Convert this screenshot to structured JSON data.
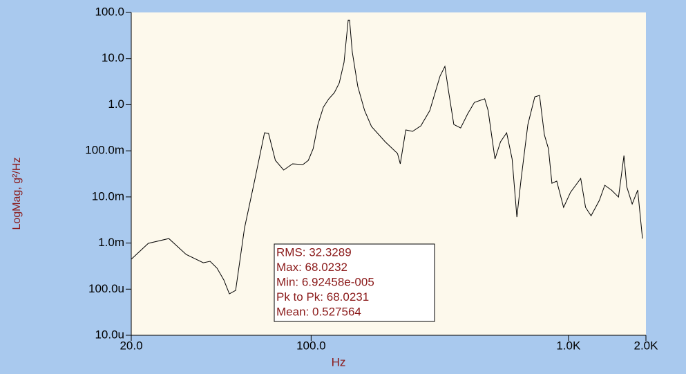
{
  "chart_data": {
    "type": "line",
    "xlabel": "Hz",
    "ylabel": "LogMag, g²/Hz",
    "xscale": "log",
    "yscale": "log",
    "xlim": [
      20,
      2000
    ],
    "ylim": [
      1e-05,
      100
    ],
    "xticks": [
      {
        "value": 20,
        "label": "20.0"
      },
      {
        "value": 100,
        "label": "100.0"
      },
      {
        "value": 1000,
        "label": "1.0K"
      },
      {
        "value": 2000,
        "label": "2.0K"
      }
    ],
    "yticks": [
      {
        "value": 1e-05,
        "label": "10.0u"
      },
      {
        "value": 0.0001,
        "label": "100.0u"
      },
      {
        "value": 0.001,
        "label": "1.0m"
      },
      {
        "value": 0.01,
        "label": "10.0m"
      },
      {
        "value": 0.1,
        "label": "100.0m"
      },
      {
        "value": 1,
        "label": "1.0"
      },
      {
        "value": 10,
        "label": "10.0"
      },
      {
        "value": 100,
        "label": "100.0"
      }
    ],
    "annotations": [
      "RMS: 32.3289",
      "Max: 68.0232",
      "Min: 6.92458e-005",
      "Pk to Pk: 68.0231",
      "Mean: 0.527564"
    ],
    "series": [
      {
        "color": "#000000",
        "x": [
          20,
          23.3,
          28.0,
          32.7,
          38.1,
          40.5,
          43.1,
          45.8,
          48.1,
          50.9,
          55.1,
          60.4,
          65.9,
          68.3,
          72.6,
          78.2,
          84.7,
          92.9,
          97.5,
          101.8,
          106.3,
          111.6,
          117.2,
          123.1,
          128.6,
          134.2,
          139.3,
          141.0,
          144.5,
          151.8,
          161.4,
          171.6,
          194.0,
          216.6,
          222.0,
          233.3,
          248.0,
          267.0,
          289.1,
          317.0,
          331.0,
          341.3,
          358.5,
          381.1,
          405.3,
          430.9,
          472.5,
          487.3,
          518.0,
          544.3,
          575.3,
          603.9,
          630.4,
          654.1,
          695.4,
          739.6,
          772.1,
          806.1,
          836.3,
          862.5,
          900.4,
          957.3,
          1018,
          1116,
          1165,
          1224,
          1318,
          1384,
          1471,
          1565,
          1643,
          1684,
          1769,
          1858,
          1939
        ],
        "values": [
          0.000445,
          0.000984,
          0.00125,
          0.000566,
          0.000374,
          0.000401,
          0.000284,
          0.000158,
          7.9e-05,
          9.4e-05,
          0.0021,
          0.0235,
          0.246,
          0.238,
          0.062,
          0.0382,
          0.0521,
          0.0504,
          0.062,
          0.111,
          0.372,
          0.883,
          1.34,
          1.82,
          2.96,
          8.34,
          68,
          68,
          14.0,
          2.49,
          0.743,
          0.336,
          0.157,
          0.0875,
          0.0521,
          0.283,
          0.264,
          0.348,
          0.743,
          4.18,
          6.77,
          2.09,
          0.372,
          0.313,
          0.625,
          1.12,
          1.34,
          0.743,
          0.0664,
          0.157,
          0.246,
          0.0664,
          0.00365,
          0.0235,
          0.372,
          1.48,
          1.59,
          0.222,
          0.111,
          0.0198,
          0.022,
          0.00592,
          0.0126,
          0.0252,
          0.00592,
          0.00391,
          0.00836,
          0.0179,
          0.014,
          0.00993,
          0.0789,
          0.0167,
          0.00703,
          0.014,
          0.00125
        ]
      }
    ]
  }
}
